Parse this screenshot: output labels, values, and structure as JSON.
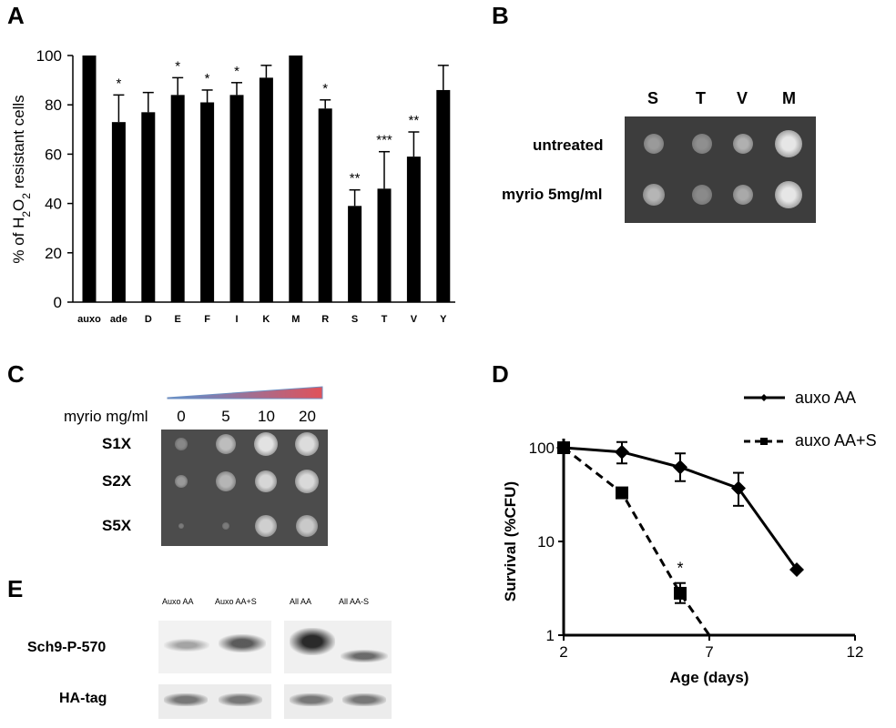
{
  "panels": {
    "A": "A",
    "B": "B",
    "C": "C",
    "D": "D",
    "E": "E"
  },
  "chart_data": [
    {
      "type": "bar",
      "panel": "A",
      "ylabel_parts": [
        "% of H",
        "2",
        "O",
        "2",
        " resistant cells"
      ],
      "ylim": [
        0,
        100
      ],
      "yticks": [
        "0",
        "20",
        "40",
        "60",
        "80",
        "100"
      ],
      "categories": [
        "auxo",
        "ade",
        "D",
        "E",
        "F",
        "I",
        "K",
        "M",
        "R",
        "S",
        "T",
        "V",
        "Y"
      ],
      "values": [
        100,
        73,
        77,
        84,
        81,
        84,
        91,
        100,
        78.5,
        39,
        46,
        59,
        86
      ],
      "errors": [
        0,
        11,
        8,
        7,
        5,
        5,
        5,
        0,
        3.5,
        6.5,
        15,
        10,
        10
      ],
      "significance": [
        "",
        "*",
        "",
        "*",
        "*",
        "*",
        "",
        "",
        "*",
        "**",
        "***",
        "**",
        ""
      ]
    },
    {
      "type": "line",
      "panel": "D",
      "ylabel": "Survival (%CFU)",
      "xlabel": "Age (days)",
      "xlim": [
        2,
        12
      ],
      "xticks": [
        "2",
        "7",
        "12"
      ],
      "ylim_log": [
        1,
        100
      ],
      "yticks": [
        "1",
        "10",
        "100"
      ],
      "series": [
        {
          "name": "auxo AA",
          "style": "solid",
          "marker": "diamond",
          "x": [
            2,
            4,
            6,
            8,
            10
          ],
          "y": [
            100,
            90,
            62,
            37,
            5
          ],
          "err_hi": [
            0,
            25,
            25,
            17,
            0
          ],
          "err_lo": [
            0,
            22,
            18,
            13,
            0
          ]
        },
        {
          "name": "auxo AA+S",
          "style": "dashed",
          "marker": "square",
          "x": [
            2,
            4,
            6,
            7
          ],
          "y": [
            100,
            33,
            2.8,
            1
          ],
          "err_hi": [
            0,
            3,
            0.8,
            0
          ],
          "err_lo": [
            0,
            3,
            0.6,
            0
          ],
          "markers_shown": 3
        }
      ],
      "annotation": "*"
    }
  ],
  "panelB": {
    "columns": [
      "S",
      "T",
      "V",
      "M"
    ],
    "rows": [
      "untreated",
      "myrio 5mg/ml"
    ]
  },
  "panelC": {
    "header_label": "myrio mg/ml",
    "concentrations": [
      "0",
      "5",
      "10",
      "20"
    ],
    "rows": [
      "S1X",
      "S2X",
      "S5X"
    ]
  },
  "panelE": {
    "lanes": [
      "Auxo AA",
      "Auxo AA+S",
      "All AA",
      "All AA-S"
    ],
    "rows": [
      "Sch9-P-570",
      "HA-tag"
    ]
  },
  "colors": {
    "bar": "#000000",
    "gradient_start": "#5b8fd1",
    "gradient_end": "#e0525a",
    "plate": "#4a4a4a"
  }
}
